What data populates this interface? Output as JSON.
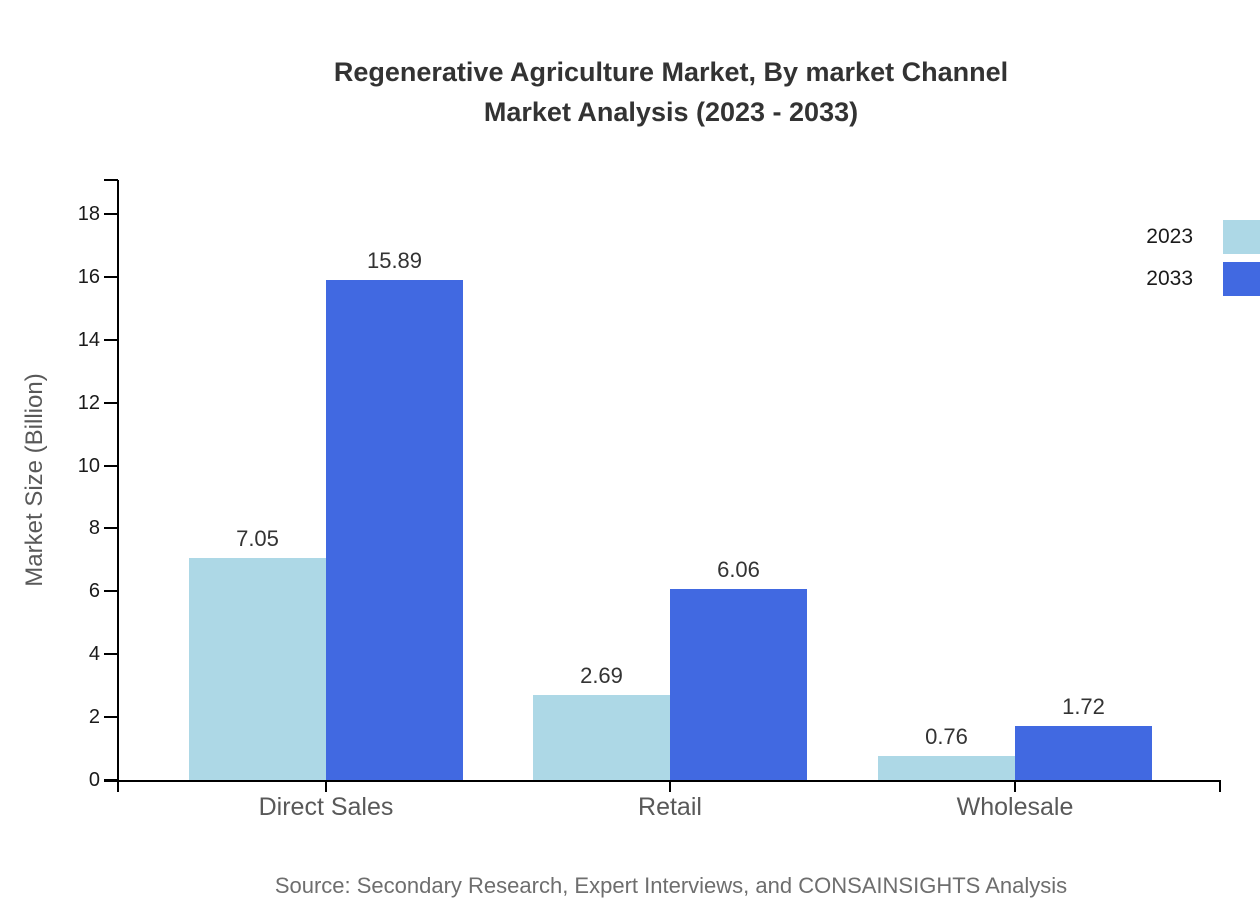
{
  "title": {
    "line1": "Regenerative Agriculture Market, By market Channel",
    "line2": "Market Analysis (2023 - 2033)"
  },
  "source": "Source: Secondary Research, Expert Interviews, and CONSAINSIGHTS Analysis",
  "legend": {
    "items": [
      {
        "label": "2023",
        "color": "#ADD8E6"
      },
      {
        "label": "2033",
        "color": "#4169E1"
      }
    ]
  },
  "chart_data": {
    "type": "bar",
    "title": "Regenerative Agriculture Market, By market Channel Market Analysis (2023 - 2033)",
    "categories": [
      "Direct Sales",
      "Retail",
      "Wholesale"
    ],
    "series": [
      {
        "name": "2023",
        "color": "#ADD8E6",
        "values": [
          7.05,
          2.69,
          0.76
        ]
      },
      {
        "name": "2033",
        "color": "#4169E1",
        "values": [
          15.89,
          6.06,
          1.72
        ]
      }
    ],
    "xlabel": "",
    "ylabel": "Market Size (Billion)",
    "ylim": [
      0,
      19
    ],
    "yticks": [
      0,
      2,
      4,
      6,
      8,
      10,
      12,
      14,
      16,
      18
    ],
    "grid": false,
    "value_labels": true,
    "legend_position": "top-right",
    "axis_color": "#000000",
    "text_color": "#333333"
  }
}
